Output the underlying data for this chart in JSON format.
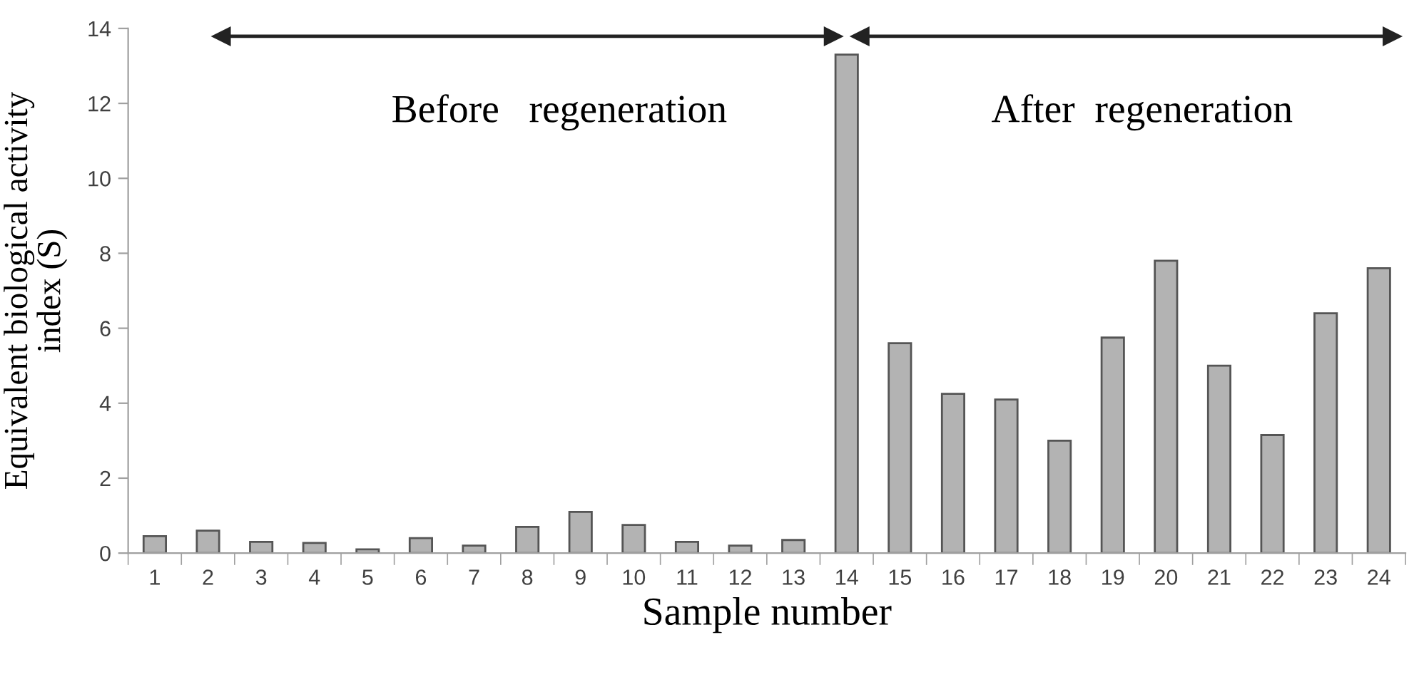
{
  "chart_data": {
    "type": "bar",
    "xlabel": "Sample number",
    "ylabel": "Equivalent biological activity\nindex (S)",
    "categories": [
      "1",
      "2",
      "3",
      "4",
      "5",
      "6",
      "7",
      "8",
      "9",
      "10",
      "11",
      "12",
      "13",
      "14",
      "15",
      "16",
      "17",
      "18",
      "19",
      "20",
      "21",
      "22",
      "23",
      "24"
    ],
    "values": [
      0.45,
      0.6,
      0.3,
      0.27,
      0.1,
      0.4,
      0.2,
      0.7,
      1.1,
      0.75,
      0.3,
      0.2,
      0.35,
      13.3,
      5.6,
      4.25,
      4.1,
      3.0,
      5.75,
      7.8,
      5.0,
      3.15,
      6.4,
      7.6
    ],
    "color": "#b3b3b3",
    "ylim": [
      0,
      14
    ],
    "yticks": [
      0,
      2,
      4,
      6,
      8,
      10,
      12,
      14
    ],
    "grid": false,
    "annotations": [
      "Before   regeneration",
      "After  regeneration"
    ]
  }
}
